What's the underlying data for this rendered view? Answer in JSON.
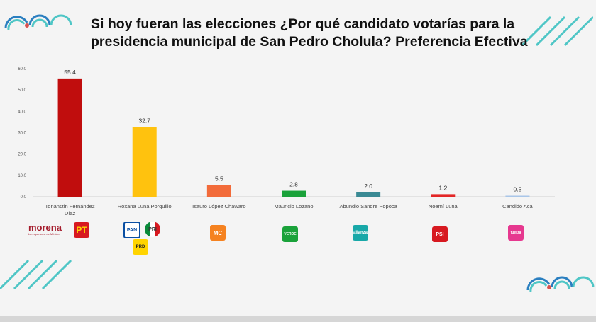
{
  "title": {
    "line1": "Si hoy fueran las elecciones ¿Por qué candidato votarías para la",
    "line2": "presidencia municipal de San Pedro Cholula? Preferencia Efectiva"
  },
  "chart_data": {
    "type": "bar",
    "title": "Si hoy fueran las elecciones ¿Por qué candidato votarías para la presidencia municipal de San Pedro Cholula? Preferencia Efectiva",
    "categories": [
      [
        "Tonantzin Fernández",
        "Díaz"
      ],
      [
        "Roxana Luna Porquillo"
      ],
      [
        "Isauro López Chawaro"
      ],
      [
        "Mauricio Lozano"
      ],
      [
        "Abundio Sandre Popoca"
      ],
      [
        "Noemí Luna"
      ],
      [
        "Candido Aca"
      ]
    ],
    "values": [
      55.4,
      32.7,
      5.5,
      2.8,
      2.0,
      1.2,
      0.5
    ],
    "value_labels": [
      "55.4",
      "32.7",
      "5.5",
      "2.8",
      "2.0",
      "1.2",
      "0.5"
    ],
    "colors": [
      "#c00d0d",
      "#ffc20e",
      "#f26b3a",
      "#1aa23a",
      "#3a8a94",
      "#e32626",
      "#a9c6e8"
    ],
    "yticks": [
      "0.0",
      "10.0",
      "20.0",
      "30.0",
      "40.0",
      "50.0",
      "60.0"
    ],
    "ylim": [
      0,
      60
    ],
    "grid": false,
    "xlabel": "",
    "ylabel": ""
  },
  "logos": {
    "morena": "morena",
    "morena_sub": "La esperanza de México",
    "pt": "PT",
    "pan": "PAN",
    "pri": "PRI",
    "prd": "PRD",
    "mc": "MC",
    "verde": "VERDE",
    "nueva_alianza": "alianza",
    "psi": "PSI",
    "fuerza": "fuerza"
  },
  "colors": {
    "accent_teal": "#4fc6c6",
    "accent_blue": "#2b7fc0",
    "accent_red": "#d9534f"
  }
}
